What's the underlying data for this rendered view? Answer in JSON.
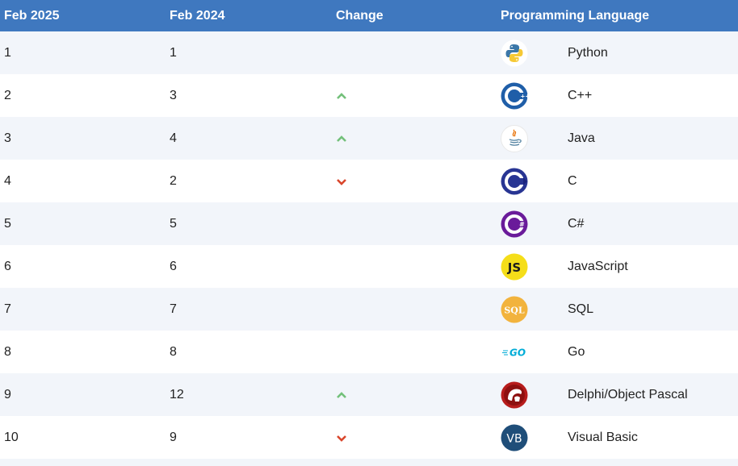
{
  "columns": {
    "current": "Feb 2025",
    "previous": "Feb 2024",
    "change": "Change",
    "language": "Programming Language"
  },
  "colors": {
    "header_bg": "#3f78bf",
    "row_alt_bg": "#f2f5fa",
    "up_arrow": "#73c07a",
    "down_arrow": "#d9462c"
  },
  "rows": [
    {
      "current": "1",
      "previous": "1",
      "change": "none",
      "language": "Python",
      "icon": "python-logo-icon"
    },
    {
      "current": "2",
      "previous": "3",
      "change": "up",
      "language": "C++",
      "icon": "cpp-logo-icon"
    },
    {
      "current": "3",
      "previous": "4",
      "change": "up",
      "language": "Java",
      "icon": "java-logo-icon"
    },
    {
      "current": "4",
      "previous": "2",
      "change": "down",
      "language": "C",
      "icon": "c-logo-icon"
    },
    {
      "current": "5",
      "previous": "5",
      "change": "none",
      "language": "C#",
      "icon": "csharp-logo-icon"
    },
    {
      "current": "6",
      "previous": "6",
      "change": "none",
      "language": "JavaScript",
      "icon": "javascript-logo-icon"
    },
    {
      "current": "7",
      "previous": "7",
      "change": "none",
      "language": "SQL",
      "icon": "sql-logo-icon"
    },
    {
      "current": "8",
      "previous": "8",
      "change": "none",
      "language": "Go",
      "icon": "go-logo-icon"
    },
    {
      "current": "9",
      "previous": "12",
      "change": "up",
      "language": "Delphi/Object Pascal",
      "icon": "delphi-logo-icon"
    },
    {
      "current": "10",
      "previous": "9",
      "change": "down",
      "language": "Visual Basic",
      "icon": "visual-basic-logo-icon"
    }
  ]
}
